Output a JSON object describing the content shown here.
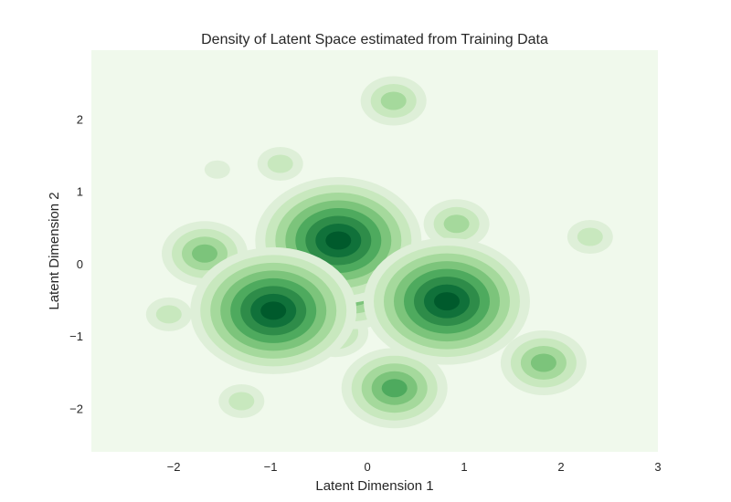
{
  "chart_data": {
    "type": "heatmap",
    "subtype": "kde-density-contour",
    "title": "Density of Latent Space estimated from Training Data",
    "xlabel": "Latent Dimension 1",
    "ylabel": "Latent Dimension 2",
    "xlim": [
      -2.85,
      3.0
    ],
    "ylim": [
      -2.6,
      2.95
    ],
    "x_ticks": [
      -2,
      -1,
      0,
      1,
      2,
      3
    ],
    "y_ticks": [
      -2,
      -1,
      0,
      1,
      2
    ],
    "x_tick_labels": [
      "−2",
      "−1",
      "0",
      "1",
      "2",
      "3"
    ],
    "y_tick_labels": [
      "−2",
      "−1",
      "0",
      "1",
      "2"
    ],
    "grid": false,
    "colormap": "Greens",
    "colors": [
      "#f0f9ec",
      "#deefd8",
      "#c8e8be",
      "#a5d99c",
      "#7cc47b",
      "#4eaa5e",
      "#2e8c49",
      "#10713a",
      "#005a2c"
    ],
    "density_peaks": [
      {
        "x": -0.3,
        "y": 0.32,
        "level": 8
      },
      {
        "x": 0.82,
        "y": -0.52,
        "level": 8
      },
      {
        "x": -0.97,
        "y": -0.65,
        "level": 8
      },
      {
        "x": 0.28,
        "y": -1.72,
        "level": 5
      },
      {
        "x": -0.15,
        "y": -0.35,
        "level": 5
      },
      {
        "x": -1.68,
        "y": 0.14,
        "level": 4
      },
      {
        "x": 1.82,
        "y": -1.37,
        "level": 4
      },
      {
        "x": 0.92,
        "y": 0.55,
        "level": 3
      },
      {
        "x": -0.33,
        "y": -0.95,
        "level": 3
      },
      {
        "x": 0.27,
        "y": 2.25,
        "level": 3
      },
      {
        "x": -2.05,
        "y": -0.7,
        "level": 2
      },
      {
        "x": -1.3,
        "y": -1.9,
        "level": 2
      },
      {
        "x": 2.3,
        "y": 0.37,
        "level": 2
      },
      {
        "x": -0.9,
        "y": 1.38,
        "level": 2
      },
      {
        "x": -1.55,
        "y": 1.3,
        "level": 1
      }
    ]
  }
}
